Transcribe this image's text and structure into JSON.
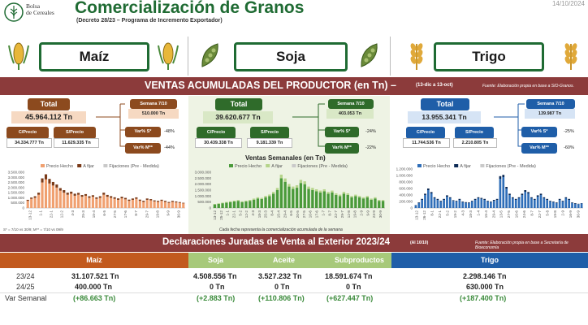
{
  "header": {
    "brand": [
      "Bolsa",
      "de Cereales"
    ],
    "title": "Comercialización de Granos",
    "subtitle": "(Decreto 28/23 – Programa de Incremento Exportador)",
    "date": "14/10/2024"
  },
  "crops": {
    "maiz": "Maíz",
    "soja": "Soja",
    "trigo": "Trigo"
  },
  "section1": {
    "title": "VENTAS ACUMULADAS DEL PRODUCTOR (en Tn) –",
    "span": "(13-dic a 13-oct)",
    "source": "Fuente: Elaboración propia en base a SIO-Granos."
  },
  "panels": [
    {
      "total_label": "Total",
      "total": "45.964.112 Tn",
      "cprecio_label": "C/Precio",
      "cprecio": "34.334.777 Tn",
      "sprecio_label": "S/Precio",
      "sprecio": "11.629.335 Tn",
      "semana_label": "Semana 7/10",
      "semana": "510.000 Tn",
      "vars_label": "Var% S*",
      "vars": "-48%",
      "varm_label": "Var% M**",
      "varm": "-44%",
      "footnote": "S* = 7/10 vs 30/9; M** = 7/10 vs 09/9",
      "legend": [
        "Precio Hecho",
        "A fijar",
        "Fijaciones (Pre - Medida)"
      ],
      "yticks": [
        "3.500.000",
        "3.000.000",
        "2.500.000",
        "2.000.000",
        "1.500.000",
        "1.000.000",
        "500.000",
        "0"
      ],
      "xticks": [
        "13-12",
        "1-1",
        "22-1",
        "12-2",
        "4-3",
        "25-3",
        "15-4",
        "6-5",
        "27-5",
        "17-6",
        "8-7",
        "29-7",
        "19-8",
        "9-9",
        "30-9"
      ]
    },
    {
      "total_label": "Total",
      "total": "39.620.677 Tn",
      "cprecio_label": "C/Precio",
      "cprecio": "30.439.338 Tn",
      "sprecio_label": "S/Precio",
      "sprecio": "9.181.339 Tn",
      "semana_label": "Semana 7/10",
      "semana": "403.053 Tn",
      "vars_label": "Var% S*",
      "vars": "-24%",
      "varm_label": "Var% M**",
      "varm": "-22%",
      "chart_title": "Ventas Semanales (en Tn)",
      "footnote": "Cada fecha representa la comercialización acumulada de la semana",
      "legend": [
        "Precio Hecho",
        "A fijar",
        "Fijaciones (Pre - Medida)"
      ],
      "yticks": [
        "3.000.000",
        "2.500.000",
        "2.000.000",
        "1.500.000",
        "1.000.000",
        "500.000",
        "0"
      ],
      "xticks": [
        "13-12",
        "25-12",
        "1-1",
        "22-1",
        "5-2",
        "12-2",
        "4-3",
        "18-3",
        "25-3",
        "8-4",
        "15-4",
        "29-4",
        "6-5",
        "20-5",
        "27-5",
        "10-6",
        "17-6",
        "1-7",
        "8-7",
        "22-7",
        "29-7",
        "12-8",
        "19-8",
        "2-9",
        "9-9",
        "23-9",
        "30-9"
      ]
    },
    {
      "total_label": "Total",
      "total": "13.955.341 Tn",
      "cprecio_label": "C/Precio",
      "cprecio": "11.744.536 Tn",
      "sprecio_label": "S/Precio",
      "sprecio": "2.210.805 Tn",
      "semana_label": "Semana 7/10",
      "semana": "139.987 Tn",
      "vars_label": "Var% S*",
      "vars": "-25%",
      "varm_label": "Var% M**",
      "varm": "-60%",
      "legend": [
        "Precio Hecho",
        "A fijar",
        "Fijaciones (Pre - Medida)"
      ],
      "yticks": [
        "1.200.000",
        "1.000.000",
        "800.000",
        "600.000",
        "400.000",
        "200.000",
        "0"
      ],
      "xticks": [
        "13-12",
        "26-12",
        "8-1",
        "22-1",
        "5-2",
        "19-2",
        "4-3",
        "18-3",
        "1-4",
        "15-4",
        "29-4",
        "13-5",
        "27-5",
        "10-6",
        "24-6",
        "8-7",
        "22-7",
        "5-8",
        "19-8",
        "2-9",
        "16-9",
        "30-9"
      ]
    }
  ],
  "chart_data": [
    {
      "type": "bar",
      "stacked": true,
      "series": [
        {
          "name": "Precio Hecho",
          "values": [
            700000,
            900000,
            1000000,
            1300000,
            2500000,
            2800000,
            2400000,
            2200000,
            2000000,
            1700000,
            1500000,
            1300000,
            1400000,
            1200000,
            1300000,
            1100000,
            1200000,
            1000000,
            1100000,
            900000,
            1000000,
            1300000,
            1100000,
            1000000,
            900000,
            800000,
            950000,
            850000,
            700000,
            800000,
            900000,
            700000,
            600000,
            800000,
            750000,
            650000,
            600000,
            700000,
            600000,
            500000,
            600000,
            550000,
            500000,
            450000
          ]
        },
        {
          "name": "A fijar",
          "values": [
            100000,
            120000,
            150000,
            200000,
            400000,
            500000,
            450000,
            350000,
            300000,
            250000,
            250000,
            200000,
            200000,
            200000,
            180000,
            170000,
            160000,
            150000,
            150000,
            140000,
            150000,
            200000,
            180000,
            160000,
            150000,
            140000,
            150000,
            140000,
            120000,
            130000,
            140000,
            120000,
            110000,
            130000,
            120000,
            100000,
            100000,
            110000,
            100000,
            90000,
            100000,
            90000,
            80000,
            60000
          ]
        }
      ],
      "ylim": [
        0,
        3500000
      ],
      "legend": "top"
    },
    {
      "type": "bar",
      "stacked": true,
      "title": "Ventas Semanales (en Tn)",
      "series": [
        {
          "name": "Precio Hecho",
          "values": [
            300000,
            350000,
            400000,
            450000,
            500000,
            550000,
            600000,
            500000,
            550000,
            600000,
            700000,
            800000,
            750000,
            900000,
            1000000,
            1200000,
            1500000,
            2500000,
            2200000,
            1800000,
            1600000,
            1700000,
            2100000,
            2000000,
            1600000,
            1500000,
            1400000,
            1300000,
            1400000,
            1200000,
            1300000,
            1100000,
            1000000,
            1200000,
            1100000,
            900000,
            1000000,
            900000,
            800000,
            900000,
            700000,
            800000,
            600000,
            600000
          ]
        },
        {
          "name": "A fijar",
          "values": [
            40000,
            50000,
            50000,
            60000,
            60000,
            70000,
            70000,
            60000,
            70000,
            80000,
            90000,
            100000,
            100000,
            120000,
            130000,
            150000,
            180000,
            300000,
            280000,
            220000,
            200000,
            210000,
            260000,
            240000,
            200000,
            190000,
            170000,
            160000,
            170000,
            150000,
            160000,
            130000,
            120000,
            150000,
            130000,
            110000,
            120000,
            110000,
            100000,
            110000,
            90000,
            100000,
            80000,
            70000
          ]
        }
      ],
      "ylim": [
        0,
        3000000
      ],
      "legend": "top"
    },
    {
      "type": "bar",
      "stacked": true,
      "series": [
        {
          "name": "Precio Hecho",
          "values": [
            80000,
            150000,
            250000,
            400000,
            550000,
            450000,
            300000,
            250000,
            200000,
            250000,
            350000,
            300000,
            220000,
            200000,
            250000,
            180000,
            160000,
            150000,
            200000,
            250000,
            300000,
            280000,
            250000,
            200000,
            180000,
            220000,
            250000,
            900000,
            950000,
            600000,
            400000,
            300000,
            250000,
            300000,
            400000,
            500000,
            450000,
            300000,
            250000,
            350000,
            400000,
            300000,
            250000,
            200000,
            180000,
            150000,
            250000,
            200000,
            300000,
            250000,
            150000,
            130000,
            120000,
            140000
          ]
        },
        {
          "name": "A fijar",
          "values": [
            10000,
            20000,
            30000,
            40000,
            50000,
            40000,
            30000,
            30000,
            20000,
            30000,
            40000,
            30000,
            20000,
            20000,
            30000,
            20000,
            20000,
            20000,
            20000,
            30000,
            30000,
            30000,
            30000,
            20000,
            20000,
            30000,
            30000,
            80000,
            70000,
            50000,
            40000,
            30000,
            30000,
            30000,
            40000,
            50000,
            40000,
            30000,
            30000,
            40000,
            40000,
            30000,
            30000,
            20000,
            20000,
            20000,
            30000,
            20000,
            30000,
            30000,
            20000,
            20000,
            10000,
            10000
          ]
        }
      ],
      "ylim": [
        0,
        1200000
      ],
      "legend": "top"
    }
  ],
  "section2": {
    "title": "Declaraciones Juradas de Venta al Exterior 2023/24",
    "span": "(Al 10/10)",
    "source": "Fuente: Elaboración propia en base a Secretaría de Bioeconomía"
  },
  "djve": {
    "headers": [
      "Maíz",
      "Soja",
      "Aceite",
      "Subproductos",
      "Trigo"
    ],
    "rows": [
      {
        "label": "23/24",
        "maiz": "31.107.521 Tn",
        "soja": "4.508.556 Tn",
        "aceite": "3.527.232 Tn",
        "sub": "18.591.674 Tn",
        "trigo": "2.298.146 Tn"
      },
      {
        "label": "24/25",
        "maiz": "400.000 Tn",
        "soja": "0 Tn",
        "aceite": "0 Tn",
        "sub": "0 Tn",
        "trigo": "630.000 Tn"
      },
      {
        "label": "Var Semanal",
        "maiz": "(+86.663 Tn)",
        "soja": "(+2.883 Tn)",
        "aceite": "(+110.806 Tn)",
        "sub": "(+627.447 Tn)",
        "trigo": "(+187.400 Tn)"
      }
    ]
  }
}
